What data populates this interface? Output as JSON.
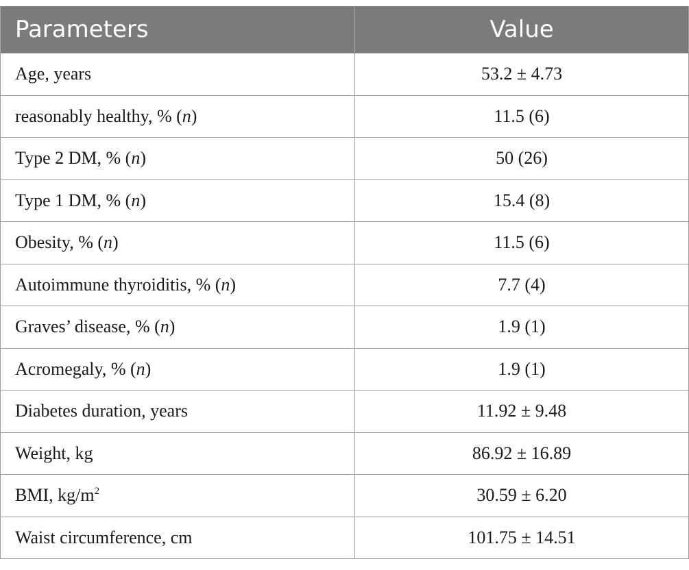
{
  "table": {
    "headers": {
      "parameters": "Parameters",
      "value": "Value"
    },
    "rows": [
      {
        "param": "Age, years",
        "param_n": "",
        "param_suffix": "",
        "value": "53.2 ± 4.73"
      },
      {
        "param": "reasonably healthy, % (",
        "param_n": "n",
        "param_suffix": ")",
        "value": "11.5 (6)"
      },
      {
        "param": "Type 2 DM, % (",
        "param_n": "n",
        "param_suffix": ")",
        "value": "50 (26)"
      },
      {
        "param": "Type 1 DM, % (",
        "param_n": "n",
        "param_suffix": ")",
        "value": "15.4 (8)"
      },
      {
        "param": "Obesity, % (",
        "param_n": "n",
        "param_suffix": ")",
        "value": "11.5 (6)"
      },
      {
        "param": "Autoimmune thyroiditis, % (",
        "param_n": "n",
        "param_suffix": ")",
        "value": "7.7 (4)"
      },
      {
        "param": "Graves’ disease, % (",
        "param_n": "n",
        "param_suffix": ")",
        "value": "1.9 (1)"
      },
      {
        "param": "Acromegaly, % (",
        "param_n": "n",
        "param_suffix": ")",
        "value": "1.9 (1)"
      },
      {
        "param": "Diabetes duration, years",
        "param_n": "",
        "param_suffix": "",
        "value": "11.92 ± 9.48"
      },
      {
        "param": "Weight, kg",
        "param_n": "",
        "param_suffix": "",
        "value": "86.92 ± 16.89"
      },
      {
        "param": "BMI, kg/m",
        "param_n": "",
        "param_suffix": "",
        "param_sup": "2",
        "value": "30.59 ± 6.20"
      },
      {
        "param": "Waist circumference, cm",
        "param_n": "",
        "param_suffix": "",
        "value": "101.75 ± 14.51"
      }
    ]
  }
}
